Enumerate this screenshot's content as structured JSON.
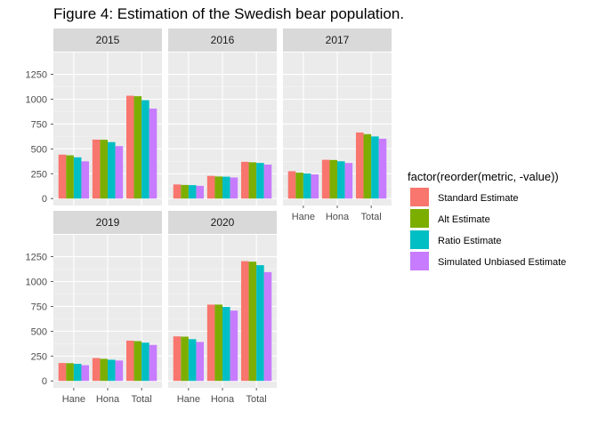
{
  "title": "Figure 4: Estimation of the Swedish bear population.",
  "chart_data": {
    "type": "bar",
    "faceted": true,
    "categories": [
      "Hane",
      "Hona",
      "Total"
    ],
    "ylim": [
      0,
      1400
    ],
    "yticks": [
      0,
      250,
      500,
      750,
      1000,
      1250
    ],
    "grid": true,
    "legend_position": "right",
    "legend_title": "factor(reorder(metric, -value))",
    "series": [
      {
        "name": "Standard Estimate",
        "color": "#F8766D"
      },
      {
        "name": "Alt Estimate",
        "color": "#7CAE00"
      },
      {
        "name": "Ratio Estimate",
        "color": "#00BFC4"
      },
      {
        "name": "Simulated Unbiased Estimate",
        "color": "#C77CFF"
      }
    ],
    "panels": [
      {
        "year": "2015",
        "values": [
          [
            442,
            593,
            1035
          ],
          [
            435,
            592,
            1030
          ],
          [
            415,
            568,
            990
          ],
          [
            375,
            528,
            905
          ]
        ]
      },
      {
        "year": "2016",
        "values": [
          [
            142,
            228,
            370
          ],
          [
            137,
            222,
            365
          ],
          [
            135,
            220,
            358
          ],
          [
            128,
            212,
            342
          ]
        ]
      },
      {
        "year": "2017",
        "values": [
          [
            275,
            390,
            665
          ],
          [
            260,
            388,
            648
          ],
          [
            252,
            375,
            625
          ],
          [
            243,
            358,
            602
          ]
        ]
      },
      {
        "year": "2019",
        "values": [
          [
            180,
            230,
            405
          ],
          [
            178,
            222,
            400
          ],
          [
            172,
            213,
            385
          ],
          [
            158,
            205,
            362
          ]
        ]
      },
      {
        "year": "2020",
        "values": [
          [
            448,
            768,
            1205
          ],
          [
            445,
            768,
            1200
          ],
          [
            420,
            745,
            1165
          ],
          [
            392,
            708,
            1095
          ]
        ]
      }
    ]
  }
}
